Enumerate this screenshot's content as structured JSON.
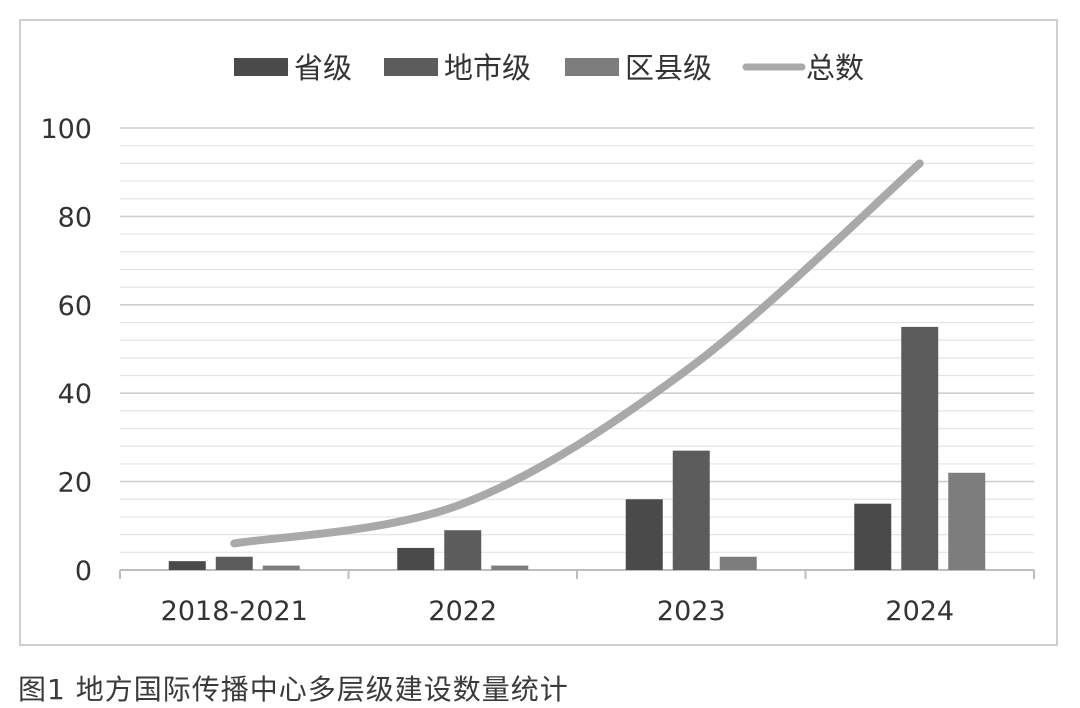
{
  "caption": "图1 地方国际传播中心多层级建设数量统计",
  "chart_data": {
    "type": "bar",
    "categories": [
      "2018-2021",
      "2022",
      "2023",
      "2024"
    ],
    "series": [
      {
        "name": "省级",
        "kind": "bar",
        "color": "#4a4a4a",
        "values": [
          2,
          5,
          16,
          15
        ]
      },
      {
        "name": "地市级",
        "kind": "bar",
        "color": "#5c5c5c",
        "values": [
          3,
          9,
          27,
          55
        ]
      },
      {
        "name": "区县级",
        "kind": "bar",
        "color": "#7d7d7d",
        "values": [
          1,
          1,
          3,
          22
        ]
      },
      {
        "name": "总数",
        "kind": "line",
        "color": "#a9a9a9",
        "values": [
          6,
          15,
          46,
          92
        ]
      }
    ],
    "ylim": [
      0,
      100
    ],
    "yticks": [
      0,
      20,
      40,
      60,
      80,
      100
    ],
    "minor_gridlines_per_major": 5,
    "grid": true,
    "legend_position": "top",
    "line_smooth": true
  }
}
